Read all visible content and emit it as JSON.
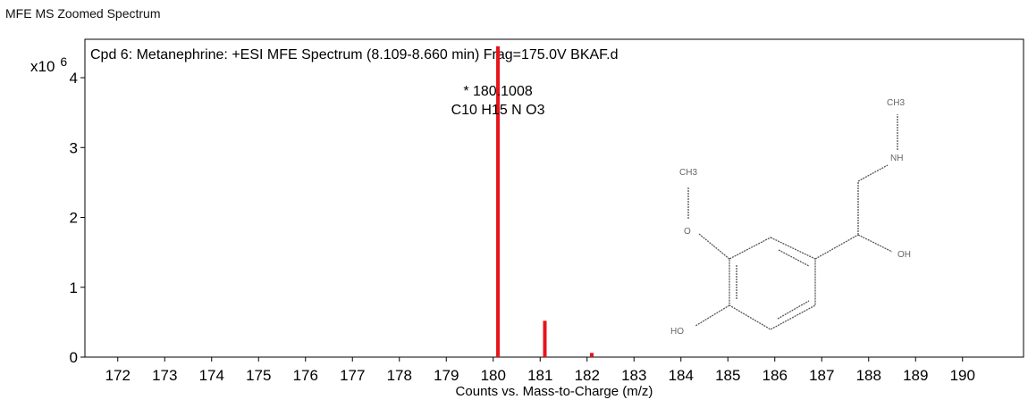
{
  "window": {
    "title": "MFE MS Zoomed Spectrum"
  },
  "chart_data": {
    "type": "bar",
    "title": "Cpd 6: Metanephrine: +ESI MFE Spectrum (8.109-8.660 min) Frag=175.0V BKAF.d",
    "xlabel": "Counts vs. Mass-to-Charge (m/z)",
    "ylabel": "",
    "y_multiplier_label": "x10",
    "y_multiplier_exponent": "6",
    "xlim": [
      171.3,
      191.3
    ],
    "ylim": [
      0,
      4.55
    ],
    "x_ticks": [
      172,
      173,
      174,
      175,
      176,
      177,
      178,
      179,
      180,
      181,
      182,
      183,
      184,
      185,
      186,
      187,
      188,
      189,
      190
    ],
    "y_ticks": [
      0,
      1,
      2,
      3,
      4
    ],
    "bar_color": "#e8141b",
    "peaks": [
      {
        "x": 180.1008,
        "y": 4.45
      },
      {
        "x": 181.1,
        "y": 0.52
      },
      {
        "x": 182.1,
        "y": 0.06
      }
    ],
    "annotations": [
      {
        "x": 180.1008,
        "lines": [
          "* 180.1008",
          "C10 H15 N O3"
        ]
      }
    ],
    "structure_labels": {
      "ch3_top": "CH3",
      "nh": "NH",
      "ch3_left": "CH3",
      "o": "O",
      "oh": "OH",
      "ho": "HO"
    }
  }
}
